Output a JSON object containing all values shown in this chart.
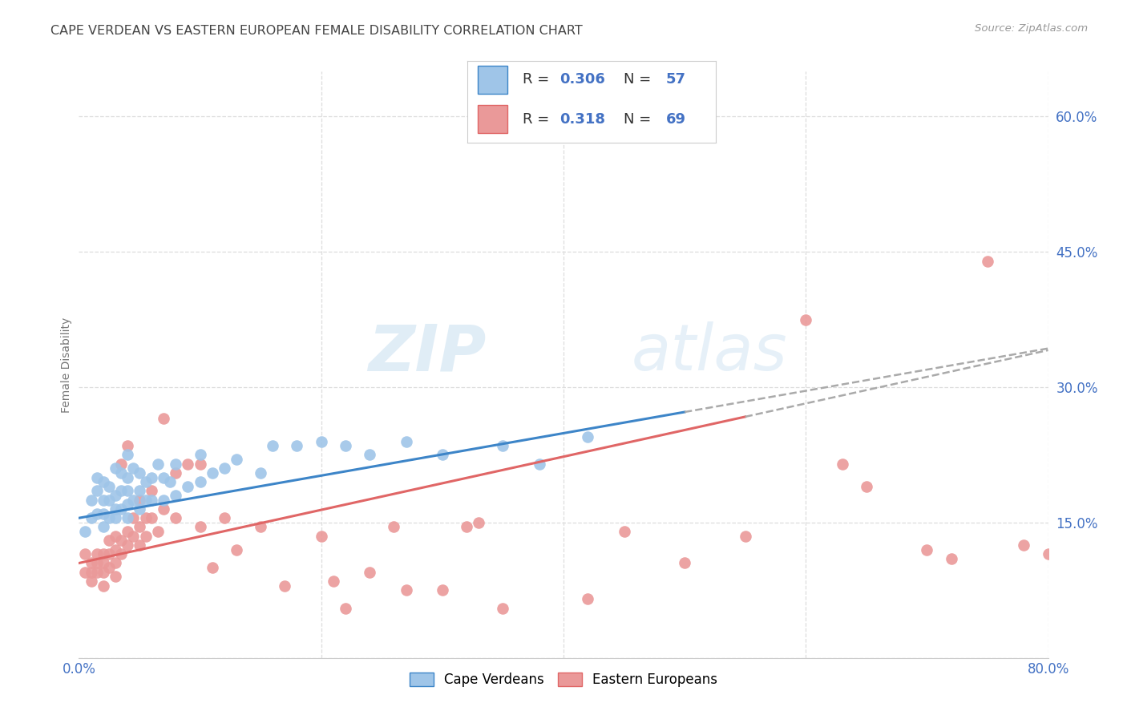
{
  "title": "CAPE VERDEAN VS EASTERN EUROPEAN FEMALE DISABILITY CORRELATION CHART",
  "source": "Source: ZipAtlas.com",
  "ylabel": "Female Disability",
  "ylim": [
    0.0,
    0.65
  ],
  "xlim": [
    0.0,
    0.8
  ],
  "ytick_vals": [
    0.0,
    0.15,
    0.3,
    0.45,
    0.6
  ],
  "ytick_labels": [
    "",
    "15.0%",
    "30.0%",
    "45.0%",
    "60.0%"
  ],
  "xtick_vals": [
    0.0,
    0.2,
    0.4,
    0.6,
    0.8
  ],
  "watermark_zip": "ZIP",
  "watermark_atlas": "atlas",
  "legend_r1": "0.306",
  "legend_n1": "57",
  "legend_r2": "0.318",
  "legend_n2": "69",
  "blue_color": "#9fc5e8",
  "pink_color": "#ea9999",
  "blue_line_color": "#3d85c8",
  "pink_line_color": "#e06666",
  "dashed_line_color": "#aaaaaa",
  "grid_color": "#dddddd",
  "tick_label_color": "#4472c4",
  "title_color": "#444444",
  "source_color": "#999999",
  "ylabel_color": "#777777",
  "cape_verdean_x": [
    0.005,
    0.01,
    0.01,
    0.015,
    0.015,
    0.015,
    0.02,
    0.02,
    0.02,
    0.02,
    0.025,
    0.025,
    0.025,
    0.03,
    0.03,
    0.03,
    0.03,
    0.035,
    0.035,
    0.035,
    0.04,
    0.04,
    0.04,
    0.04,
    0.04,
    0.045,
    0.045,
    0.05,
    0.05,
    0.05,
    0.055,
    0.055,
    0.06,
    0.06,
    0.065,
    0.07,
    0.07,
    0.075,
    0.08,
    0.08,
    0.09,
    0.1,
    0.1,
    0.11,
    0.12,
    0.13,
    0.15,
    0.16,
    0.18,
    0.2,
    0.22,
    0.24,
    0.27,
    0.3,
    0.35,
    0.38,
    0.42
  ],
  "cape_verdean_y": [
    0.14,
    0.155,
    0.175,
    0.16,
    0.185,
    0.2,
    0.145,
    0.16,
    0.175,
    0.195,
    0.155,
    0.175,
    0.19,
    0.155,
    0.165,
    0.18,
    0.21,
    0.165,
    0.185,
    0.205,
    0.155,
    0.17,
    0.185,
    0.2,
    0.225,
    0.175,
    0.21,
    0.165,
    0.185,
    0.205,
    0.175,
    0.195,
    0.175,
    0.2,
    0.215,
    0.175,
    0.2,
    0.195,
    0.18,
    0.215,
    0.19,
    0.195,
    0.225,
    0.205,
    0.21,
    0.22,
    0.205,
    0.235,
    0.235,
    0.24,
    0.235,
    0.225,
    0.24,
    0.225,
    0.235,
    0.215,
    0.245
  ],
  "eastern_european_x": [
    0.005,
    0.005,
    0.01,
    0.01,
    0.01,
    0.015,
    0.015,
    0.015,
    0.02,
    0.02,
    0.02,
    0.02,
    0.025,
    0.025,
    0.025,
    0.03,
    0.03,
    0.03,
    0.03,
    0.035,
    0.035,
    0.035,
    0.04,
    0.04,
    0.04,
    0.045,
    0.045,
    0.05,
    0.05,
    0.05,
    0.055,
    0.055,
    0.06,
    0.06,
    0.065,
    0.07,
    0.07,
    0.08,
    0.08,
    0.09,
    0.1,
    0.1,
    0.11,
    0.12,
    0.13,
    0.15,
    0.17,
    0.2,
    0.21,
    0.22,
    0.24,
    0.26,
    0.27,
    0.3,
    0.32,
    0.33,
    0.35,
    0.42,
    0.45,
    0.5,
    0.55,
    0.6,
    0.63,
    0.65,
    0.7,
    0.72,
    0.75,
    0.78,
    0.8
  ],
  "eastern_european_y": [
    0.095,
    0.115,
    0.095,
    0.105,
    0.085,
    0.095,
    0.105,
    0.115,
    0.095,
    0.105,
    0.08,
    0.115,
    0.1,
    0.115,
    0.13,
    0.105,
    0.12,
    0.135,
    0.09,
    0.115,
    0.13,
    0.215,
    0.125,
    0.14,
    0.235,
    0.135,
    0.155,
    0.125,
    0.145,
    0.175,
    0.135,
    0.155,
    0.155,
    0.185,
    0.14,
    0.165,
    0.265,
    0.155,
    0.205,
    0.215,
    0.145,
    0.215,
    0.1,
    0.155,
    0.12,
    0.145,
    0.08,
    0.135,
    0.085,
    0.055,
    0.095,
    0.145,
    0.075,
    0.075,
    0.145,
    0.15,
    0.055,
    0.065,
    0.14,
    0.105,
    0.135,
    0.375,
    0.215,
    0.19,
    0.12,
    0.11,
    0.44,
    0.125,
    0.115
  ]
}
